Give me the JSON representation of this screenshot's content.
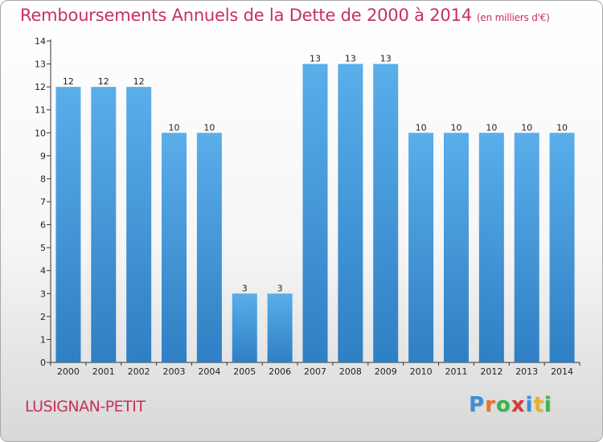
{
  "title": "Remboursements Annuels de la Dette de 2000 à 2014",
  "unit": "(en milliers d'€)",
  "place": "LUSIGNAN-PETIT",
  "logo": {
    "letters": [
      "P",
      "r",
      "o",
      "x",
      "i",
      "t",
      "i"
    ],
    "colors": [
      "#3a8fd6",
      "#e8742c",
      "#3ab54a",
      "#d63a3a",
      "#3a8fd6",
      "#e8b02c",
      "#3ab54a"
    ]
  },
  "colors": {
    "bar_light": "#5aaeea",
    "bar_dark": "#2f7fc4",
    "text": "#c8305a",
    "axis": "#333333"
  },
  "chart_data": {
    "type": "bar",
    "title": "Remboursements Annuels de la Dette de 2000 à 2014",
    "categories": [
      "2000",
      "2001",
      "2002",
      "2003",
      "2004",
      "2005",
      "2006",
      "2007",
      "2008",
      "2009",
      "2010",
      "2011",
      "2012",
      "2013",
      "2014"
    ],
    "values": [
      12,
      12,
      12,
      10,
      10,
      3,
      3,
      13,
      13,
      13,
      10,
      10,
      10,
      10,
      10
    ],
    "ylim": [
      0,
      14
    ],
    "yticks": [
      "0",
      "1",
      "2",
      "3",
      "4",
      "5",
      "6",
      "7",
      "8",
      "9",
      "10",
      "11",
      "12",
      "13",
      "14"
    ],
    "grid": false,
    "legend": "none"
  }
}
